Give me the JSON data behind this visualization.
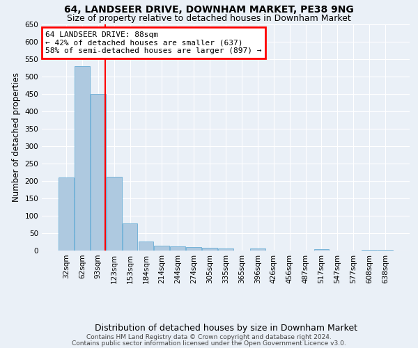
{
  "title1": "64, LANDSEER DRIVE, DOWNHAM MARKET, PE38 9NG",
  "title2": "Size of property relative to detached houses in Downham Market",
  "xlabel": "Distribution of detached houses by size in Downham Market",
  "ylabel": "Number of detached properties",
  "categories": [
    "32sqm",
    "62sqm",
    "93sqm",
    "123sqm",
    "153sqm",
    "184sqm",
    "214sqm",
    "244sqm",
    "274sqm",
    "305sqm",
    "335sqm",
    "365sqm",
    "396sqm",
    "426sqm",
    "456sqm",
    "487sqm",
    "517sqm",
    "547sqm",
    "577sqm",
    "608sqm",
    "638sqm"
  ],
  "values": [
    210,
    530,
    450,
    213,
    78,
    27,
    15,
    12,
    10,
    8,
    7,
    0,
    6,
    0,
    0,
    0,
    4,
    0,
    0,
    2,
    3
  ],
  "bar_color": "#aec9e0",
  "bar_edge_color": "#6aadd5",
  "annotation_text": "64 LANDSEER DRIVE: 88sqm\n← 42% of detached houses are smaller (637)\n58% of semi-detached houses are larger (897) →",
  "annotation_box_color": "white",
  "annotation_box_edge": "red",
  "red_line_x": 2.45,
  "ylim": [
    0,
    650
  ],
  "yticks": [
    0,
    50,
    100,
    150,
    200,
    250,
    300,
    350,
    400,
    450,
    500,
    550,
    600,
    650
  ],
  "footer1": "Contains HM Land Registry data © Crown copyright and database right 2024.",
  "footer2": "Contains public sector information licensed under the Open Government Licence v3.0.",
  "bg_color": "#eaf0f7",
  "title_fontsize": 10,
  "subtitle_fontsize": 9,
  "tick_fontsize": 7.5,
  "ylabel_fontsize": 8.5,
  "xlabel_fontsize": 9,
  "footer_fontsize": 6.5,
  "annotation_fontsize": 8
}
